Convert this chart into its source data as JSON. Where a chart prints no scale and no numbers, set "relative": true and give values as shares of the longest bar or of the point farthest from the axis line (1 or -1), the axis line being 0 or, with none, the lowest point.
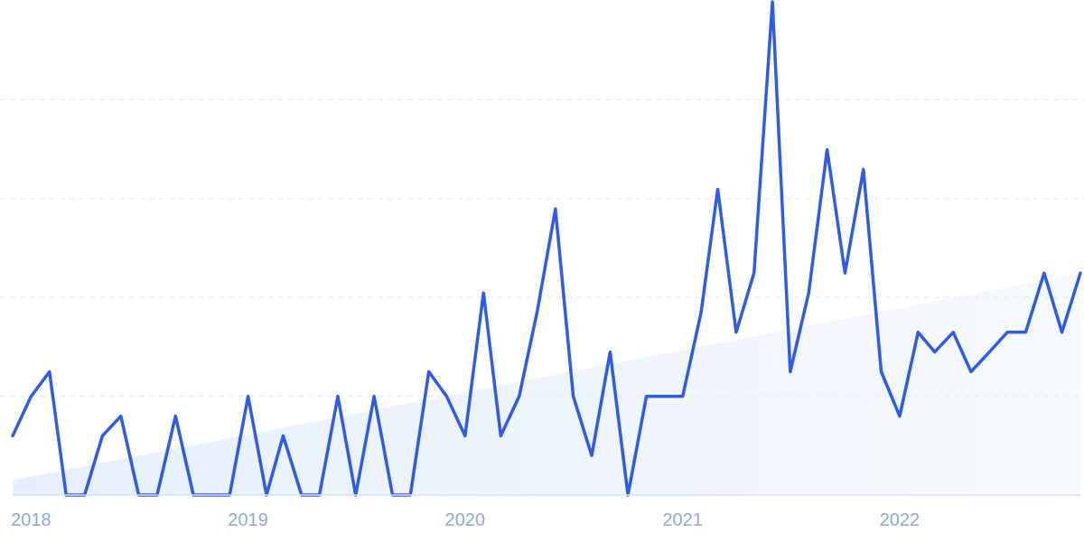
{
  "chart_data": {
    "type": "line",
    "relative": true,
    "grid": "y",
    "tick_labels": "x",
    "marker": "none",
    "line_style": "solid",
    "x": [
      "2017-12",
      "2018-01",
      "2018-02",
      "2018-03",
      "2018-04",
      "2018-05",
      "2018-06",
      "2018-07",
      "2018-08",
      "2018-09",
      "2018-10",
      "2018-11",
      "2018-12",
      "2019-01",
      "2019-02",
      "2019-03",
      "2019-04",
      "2019-05",
      "2019-06",
      "2019-07",
      "2019-08",
      "2019-09",
      "2019-10",
      "2019-11",
      "2019-12",
      "2020-01",
      "2020-02",
      "2020-03",
      "2020-04",
      "2020-05",
      "2020-06",
      "2020-07",
      "2020-08",
      "2020-09",
      "2020-10",
      "2020-11",
      "2020-12",
      "2021-01",
      "2021-02",
      "2021-03",
      "2021-04",
      "2021-05",
      "2021-06",
      "2021-07",
      "2021-08",
      "2021-09",
      "2021-10",
      "2021-11",
      "2021-12",
      "2022-01",
      "2022-02",
      "2022-03",
      "2022-04",
      "2022-05",
      "2022-06",
      "2022-07",
      "2022-08",
      "2022-09",
      "2022-10",
      "2022-11"
    ],
    "xlim": [
      "2017-12",
      "2022-11"
    ],
    "xticks": [
      {
        "value": "2018-01",
        "label": "2018"
      },
      {
        "value": "2019-01",
        "label": "2019"
      },
      {
        "value": "2020-01",
        "label": "2020"
      },
      {
        "value": "2021-01",
        "label": "2021"
      },
      {
        "value": "2022-01",
        "label": "2022"
      }
    ],
    "series": [
      {
        "type": "area",
        "color": "#e6effb",
        "x": [
          "2017-12",
          "2022-11"
        ],
        "values": [
          0.03,
          0.45
        ]
      },
      {
        "color": "#2f5ce6",
        "values": [
          0.12,
          0.2,
          0.25,
          0,
          0,
          0.12,
          0.16,
          0,
          0,
          0.16,
          0,
          0,
          0,
          0.2,
          0,
          0.12,
          0,
          0,
          0.2,
          0,
          0.2,
          0,
          0,
          0.25,
          0.2,
          0.12,
          0.41,
          0.12,
          0.2,
          0.37,
          0.58,
          0.2,
          0.08,
          0.29,
          0,
          0.2,
          0.2,
          0.2,
          0.37,
          0.62,
          0.33,
          0.45,
          1,
          0.25,
          0.41,
          0.7,
          0.45,
          0.66,
          0.25,
          0.16,
          0.33,
          0.29,
          0.33,
          0.25,
          0.29,
          0.33,
          0.33,
          0.45,
          0.33,
          0.45
        ]
      }
    ]
  }
}
